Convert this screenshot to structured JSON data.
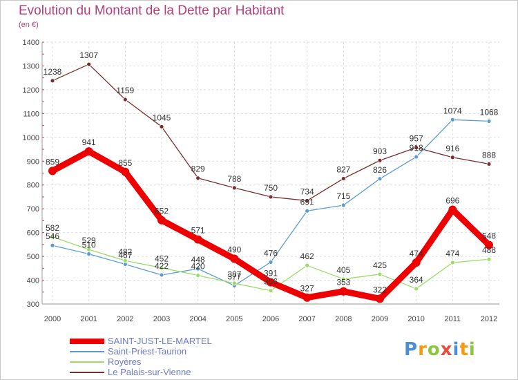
{
  "chart_data": {
    "type": "line",
    "title": "Evolution du Montant de la Dette par Habitant",
    "subtitle": "(en €)",
    "xlabel": "",
    "ylabel": "",
    "ylim": [
      300,
      1400
    ],
    "yticks": [
      300,
      400,
      500,
      600,
      700,
      800,
      900,
      1000,
      1100,
      1200,
      1300,
      1400
    ],
    "categories": [
      "2000",
      "2001",
      "2002",
      "2003",
      "2004",
      "2005",
      "2006",
      "2007",
      "2008",
      "2009",
      "2010",
      "2011",
      "2012"
    ],
    "grid": true,
    "legend_position": "bottom-left",
    "series": [
      {
        "name": "Le Palais-sur-Vienne",
        "color": "#7a2d2d",
        "values": [
          1238,
          1307,
          1159,
          1045,
          829,
          788,
          750,
          734,
          827,
          903,
          957,
          916,
          888
        ]
      },
      {
        "name": "Saint-Priest-Taurion",
        "color": "#5b9bd5",
        "values": [
          546,
          510,
          467,
          422,
          448,
          377,
          476,
          691,
          715,
          826,
          918,
          1074,
          1068
        ]
      },
      {
        "name": "Royères",
        "color": "#99dd66",
        "values": [
          582,
          529,
          482,
          452,
          420,
          387,
          356,
          462,
          405,
          425,
          364,
          474,
          488
        ]
      },
      {
        "name": "SAINT-JUST-LE-MARTEL",
        "color": "#ee0000",
        "values": [
          859,
          941,
          855,
          652,
          571,
          490,
          391,
          327,
          353,
          322,
          474,
          696,
          548
        ]
      }
    ]
  },
  "legend": {
    "items": [
      {
        "label": "SAINT-JUST-LE-MARTEL",
        "color": "#ee0000"
      },
      {
        "label": "Saint-Priest-Taurion",
        "color": "#5b9bd5"
      },
      {
        "label": "Royères",
        "color": "#99dd66"
      },
      {
        "label": "Le Palais-sur-Vienne",
        "color": "#7a2d2d"
      }
    ]
  },
  "logo": {
    "letters": [
      "P",
      "r",
      "o",
      "x",
      "i",
      "t",
      "i"
    ],
    "colors": [
      "#4a8fd6",
      "#f39c12",
      "#8cc63f",
      "#e74c3c",
      "#4a8fd6",
      "#f39c12",
      "#8cc63f"
    ]
  }
}
